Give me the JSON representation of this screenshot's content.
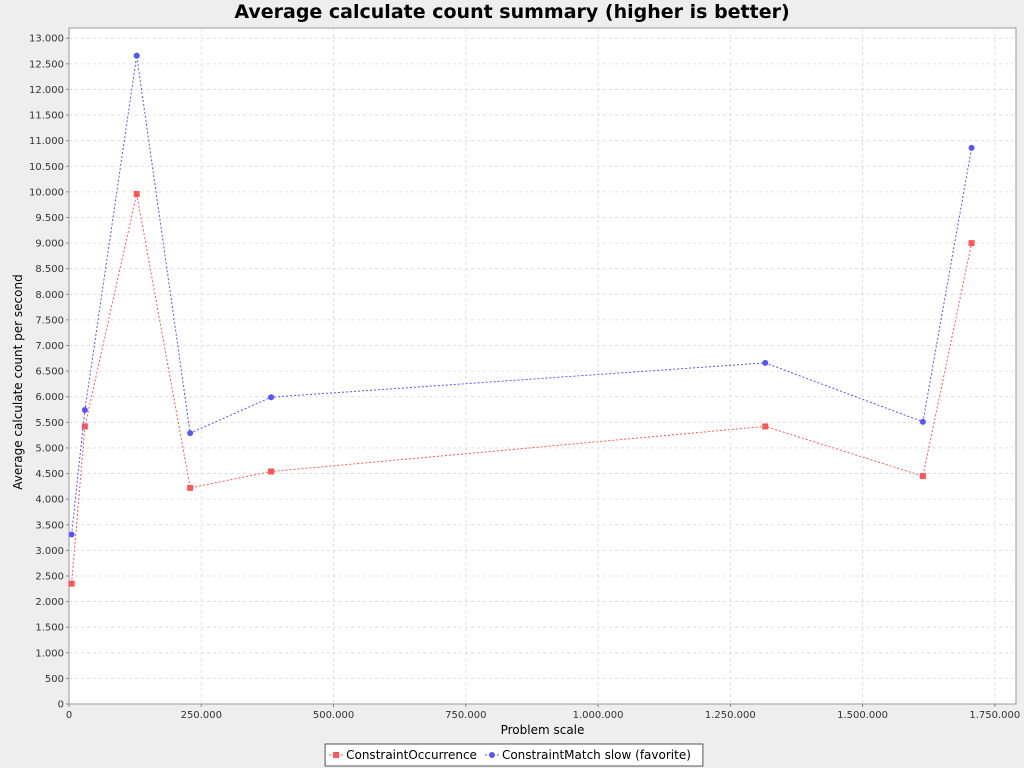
{
  "chart_data": {
    "type": "line",
    "title": "Average calculate count summary (higher is better)",
    "xlabel": "Problem scale",
    "ylabel": "Average calculate count per second",
    "xlim": [
      0,
      1790000
    ],
    "ylim": [
      0,
      13200
    ],
    "x_ticks": [
      0,
      250000,
      500000,
      750000,
      1000000,
      1250000,
      1500000,
      1750000
    ],
    "x_tick_labels": [
      "0",
      "250.000",
      "500.000",
      "750.000",
      "1.000.000",
      "1.250.000",
      "1.500.000",
      "1.750.000"
    ],
    "y_ticks": [
      0,
      500,
      1000,
      1500,
      2000,
      2500,
      3000,
      3500,
      4000,
      4500,
      5000,
      5500,
      6000,
      6500,
      7000,
      7500,
      8000,
      8500,
      9000,
      9500,
      10000,
      10500,
      11000,
      11500,
      12000,
      12500,
      13000
    ],
    "y_tick_labels": [
      "0",
      "500",
      "1.000",
      "1.500",
      "2.000",
      "2.500",
      "3.000",
      "3.500",
      "4.000",
      "4.500",
      "5.000",
      "5.500",
      "6.000",
      "6.500",
      "7.000",
      "7.500",
      "8.000",
      "8.500",
      "9.000",
      "9.500",
      "10.000",
      "10.500",
      "11.000",
      "11.500",
      "12.000",
      "12.500",
      "13.000"
    ],
    "grid": true,
    "legend_position": "bottom-center",
    "series": [
      {
        "name": "ConstraintOccurrence",
        "color": "#ff5555",
        "marker": "square",
        "x": [
          5000,
          30000,
          128000,
          229000,
          382000,
          1316000,
          1614000,
          1706000
        ],
        "y": [
          2350,
          5420,
          9960,
          4220,
          4540,
          5420,
          4450,
          9000
        ]
      },
      {
        "name": "ConstraintMatch slow (favorite)",
        "color": "#5555ff",
        "marker": "circle",
        "x": [
          5000,
          30000,
          128000,
          229000,
          382000,
          1316000,
          1614000,
          1706000
        ],
        "y": [
          3310,
          5740,
          12660,
          5290,
          5990,
          6660,
          5510,
          10860
        ]
      }
    ]
  }
}
